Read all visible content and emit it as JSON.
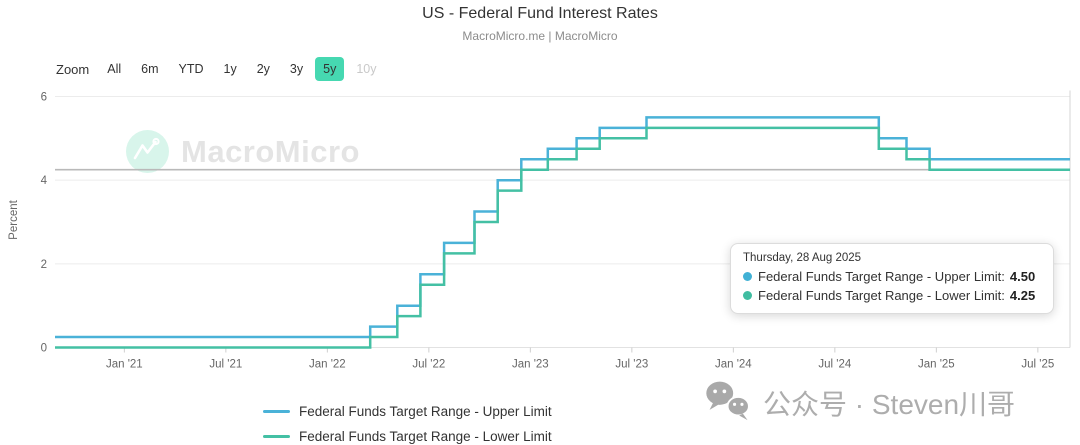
{
  "header": {
    "title": "US - Federal Fund Interest Rates",
    "subtitle": "MacroMicro.me | MacroMicro"
  },
  "toolbar": {
    "zoom_label": "Zoom",
    "ranges": [
      {
        "label": "All"
      },
      {
        "label": "6m"
      },
      {
        "label": "YTD"
      },
      {
        "label": "1y"
      },
      {
        "label": "2y"
      },
      {
        "label": "3y"
      },
      {
        "label": "5y",
        "active": true
      },
      {
        "label": "10y",
        "disabled": true
      }
    ]
  },
  "colors": {
    "upper_line": "#4ab2d8",
    "lower_line": "#44c0a4",
    "active_range_bg": "#46d8b1",
    "grid": "#ececec",
    "axis_line": "#e2e2e2",
    "tick": "#cfcfcf",
    "axis_text": "#666666",
    "reference_line": "#b9b9b9",
    "crosshair": "#d4d4d4",
    "tooltip_dot_upper": "#41b1d5",
    "tooltip_dot_lower": "#40bda1"
  },
  "chart_data": {
    "type": "line",
    "step": true,
    "title": "US - Federal Fund Interest Rates",
    "xlabel": "",
    "ylabel": "Percent",
    "ylim": [
      0,
      6
    ],
    "y_ticks": [
      0,
      2,
      4,
      6
    ],
    "x_range": [
      "2020-08-28",
      "2025-08-28"
    ],
    "x_ticks": [
      {
        "label": "Jan '21",
        "date": "2021-01-01"
      },
      {
        "label": "Jul '21",
        "date": "2021-07-01"
      },
      {
        "label": "Jan '22",
        "date": "2022-01-01"
      },
      {
        "label": "Jul '22",
        "date": "2022-07-01"
      },
      {
        "label": "Jan '23",
        "date": "2023-01-01"
      },
      {
        "label": "Jul '23",
        "date": "2023-07-01"
      },
      {
        "label": "Jan '24",
        "date": "2024-01-01"
      },
      {
        "label": "Jul '24",
        "date": "2024-07-01"
      },
      {
        "label": "Jan '25",
        "date": "2025-01-01"
      },
      {
        "label": "Jul '25",
        "date": "2025-07-01"
      }
    ],
    "grid": true,
    "legend_position": "bottom",
    "reference_line_value": 4.25,
    "crosshair_date": "2025-08-28",
    "series": [
      {
        "name": "Federal Funds Target Range - Upper Limit",
        "color": "#4ab2d8",
        "points": [
          [
            "2020-08-28",
            0.25
          ],
          [
            "2022-03-17",
            0.5
          ],
          [
            "2022-05-05",
            1.0
          ],
          [
            "2022-06-16",
            1.75
          ],
          [
            "2022-07-28",
            2.5
          ],
          [
            "2022-09-22",
            3.25
          ],
          [
            "2022-11-03",
            4.0
          ],
          [
            "2022-12-15",
            4.5
          ],
          [
            "2023-02-02",
            4.75
          ],
          [
            "2023-03-23",
            5.0
          ],
          [
            "2023-05-04",
            5.25
          ],
          [
            "2023-07-27",
            5.5
          ],
          [
            "2024-09-19",
            5.0
          ],
          [
            "2024-11-08",
            4.75
          ],
          [
            "2024-12-19",
            4.5
          ],
          [
            "2025-08-28",
            4.5
          ]
        ]
      },
      {
        "name": "Federal Funds Target Range - Lower Limit",
        "color": "#44c0a4",
        "points": [
          [
            "2020-08-28",
            0.0
          ],
          [
            "2022-03-17",
            0.25
          ],
          [
            "2022-05-05",
            0.75
          ],
          [
            "2022-06-16",
            1.5
          ],
          [
            "2022-07-28",
            2.25
          ],
          [
            "2022-09-22",
            3.0
          ],
          [
            "2022-11-03",
            3.75
          ],
          [
            "2022-12-15",
            4.25
          ],
          [
            "2023-02-02",
            4.5
          ],
          [
            "2023-03-23",
            4.75
          ],
          [
            "2023-05-04",
            5.0
          ],
          [
            "2023-07-27",
            5.25
          ],
          [
            "2024-09-19",
            4.75
          ],
          [
            "2024-11-08",
            4.5
          ],
          [
            "2024-12-19",
            4.25
          ],
          [
            "2025-08-28",
            4.25
          ]
        ]
      }
    ]
  },
  "tooltip": {
    "date": "Thursday, 28 Aug 2025",
    "rows": [
      {
        "label": "Federal Funds Target Range - Upper Limit:",
        "value": "4.50",
        "color": "#41b1d5"
      },
      {
        "label": "Federal Funds Target Range - Lower Limit:",
        "value": "4.25",
        "color": "#40bda1"
      }
    ]
  },
  "legend": {
    "items": [
      {
        "label": "Federal Funds Target Range - Upper Limit",
        "color": "#4ab2d8"
      },
      {
        "label": "Federal Funds Target Range - Lower Limit",
        "color": "#44c0a4"
      }
    ]
  },
  "watermark": {
    "brand": "MacroMicro"
  },
  "overlay": {
    "wechat_text": "公众号 · Steven川哥"
  }
}
